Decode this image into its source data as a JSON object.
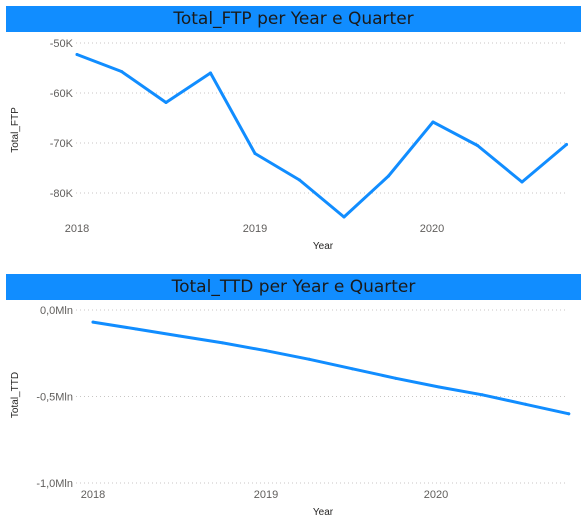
{
  "colors": {
    "accent": "#118DFF",
    "title_bar": "#118DFF",
    "line": "#118DFF"
  },
  "chart_data": [
    {
      "type": "line",
      "title": "Total_FTP per Year e Quarter",
      "xlabel": "Year",
      "ylabel": "Total_FTP",
      "x_tick_labels": [
        "2018",
        "2019",
        "2020"
      ],
      "y_tick_labels": [
        "-50K",
        "-60K",
        "-70K",
        "-80K"
      ],
      "y_ticks": [
        -50000,
        -60000,
        -70000,
        -80000
      ],
      "ylim": [
        -86000,
        -47000
      ],
      "grid": true,
      "x": [
        "2018 Q1",
        "2018 Q2",
        "2018 Q3",
        "2018 Q4",
        "2019 Q1",
        "2019 Q2",
        "2019 Q3",
        "2019 Q4",
        "2020 Q1",
        "2020 Q2",
        "2020 Q3",
        "2020 Q4"
      ],
      "series": [
        {
          "values": [
            -52300,
            -55700,
            -61900,
            -56000,
            -72100,
            -77400,
            -84800,
            -76600,
            -65800,
            -70500,
            -77800,
            -70300
          ]
        }
      ]
    },
    {
      "type": "line",
      "title": "Total_TTD per Year e Quarter",
      "xlabel": "Year",
      "ylabel": "Total_TTD",
      "x_tick_labels": [
        "2018",
        "2019",
        "2020"
      ],
      "y_tick_labels": [
        "0,0Mln",
        "-0,5Mln",
        "-1,0Mln"
      ],
      "y_ticks": [
        0,
        -500000,
        -1000000
      ],
      "ylim": [
        -1000000,
        0
      ],
      "grid": true,
      "x": [
        "2018 Q1",
        "2018 Q2",
        "2018 Q3",
        "2018 Q4",
        "2019 Q1",
        "2019 Q2",
        "2019 Q3",
        "2019 Q4",
        "2020 Q1",
        "2020 Q2",
        "2020 Q3",
        "2020 Q4"
      ],
      "series": [
        {
          "values": [
            -70000,
            -110000,
            -150000,
            -190000,
            -235000,
            -285000,
            -340000,
            -395000,
            -445000,
            -490000,
            -545000,
            -600000
          ]
        }
      ]
    }
  ]
}
